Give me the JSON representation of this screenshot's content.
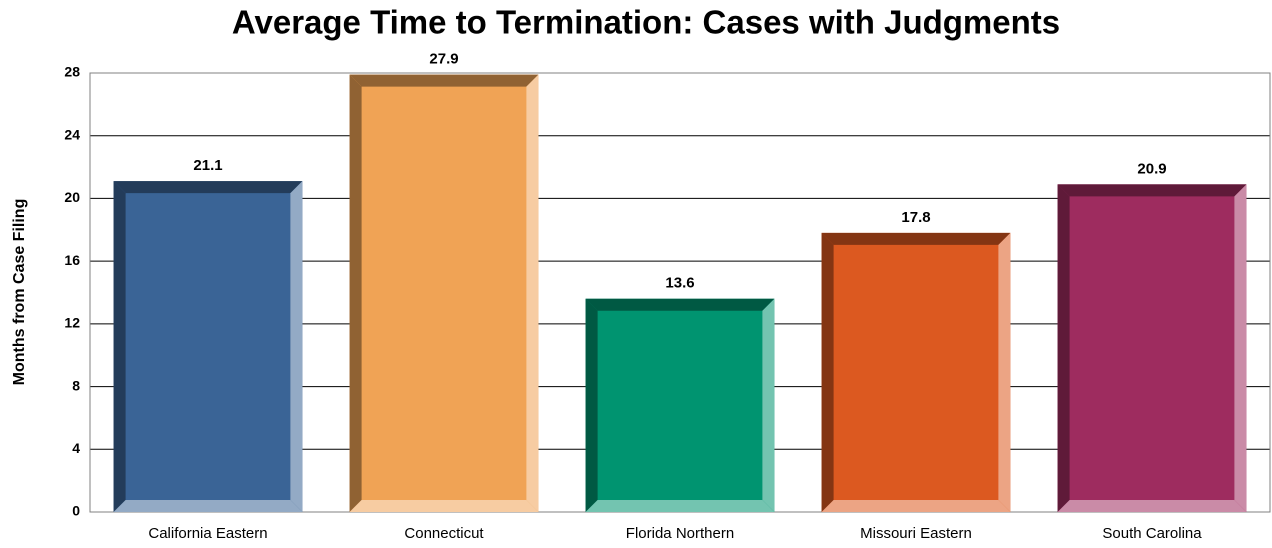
{
  "chart_data": {
    "type": "bar",
    "title": "Average Time to Termination: Cases with Judgments",
    "y_label": "Months from Case Filing",
    "categories": [
      "California Eastern",
      "Connecticut",
      "Florida Northern",
      "Missouri Eastern",
      "South Carolina"
    ],
    "values": [
      21.1,
      27.9,
      13.6,
      17.8,
      20.9
    ],
    "colors": [
      "#3a6496",
      "#f0a355",
      "#009470",
      "#dc5920",
      "#9e2c5f"
    ],
    "ylim": [
      0,
      28
    ],
    "yticks": [
      0,
      4,
      8,
      12,
      16,
      20,
      24,
      28
    ],
    "grid": true,
    "value_labels_shown": true
  }
}
